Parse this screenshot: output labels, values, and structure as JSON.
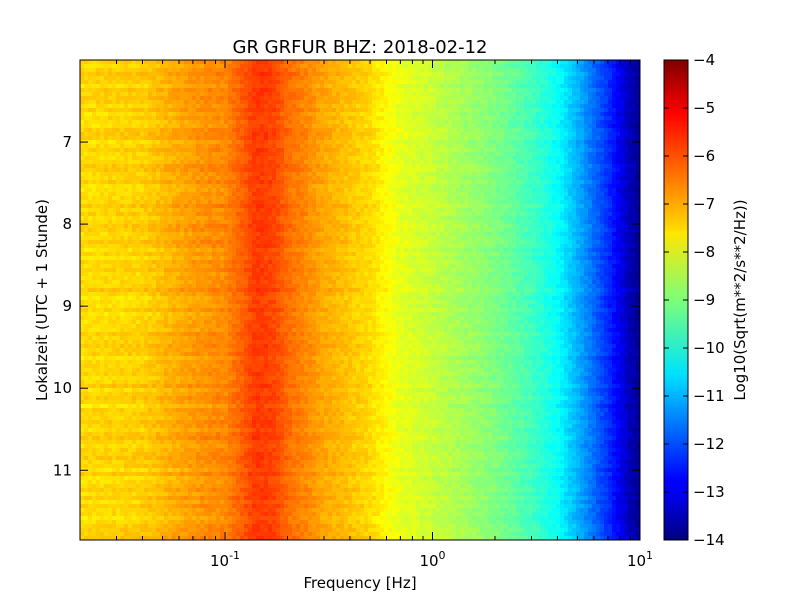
{
  "chart_data": {
    "type": "heatmap",
    "title": "GR GRFUR BHZ: 2018-02-12",
    "xlabel": "Frequency [Hz]",
    "ylabel": "Lokalzeit (UTC + 1 Stunde)",
    "colorbar_label": "Log10(Sqrt(m**2/s**2/Hz))",
    "x_scale": "log",
    "xlim": [
      0.02,
      10
    ],
    "x_ticks": [
      {
        "value": 0.1,
        "base": "10",
        "exp": "-1"
      },
      {
        "value": 1,
        "base": "10",
        "exp": "0"
      },
      {
        "value": 10,
        "base": "10",
        "exp": "1"
      }
    ],
    "ylim": [
      6.0,
      11.85
    ],
    "y_inverted": true,
    "y_ticks": [
      7,
      8,
      9,
      10,
      11
    ],
    "y_tick_labels": [
      "7",
      "8",
      "9",
      "10",
      "11"
    ],
    "clim": [
      -14,
      -4
    ],
    "colorbar_ticks": [
      -4,
      -5,
      -6,
      -7,
      -8,
      -9,
      -10,
      -11,
      -12,
      -13,
      -14
    ],
    "colorbar_tick_labels": [
      "−4",
      "−5",
      "−6",
      "−7",
      "−8",
      "−9",
      "−10",
      "−11",
      "−12",
      "−13",
      "−14"
    ],
    "colormap": "jet",
    "spectrum_profile": {
      "frequency_hz": [
        0.02,
        0.04,
        0.06,
        0.08,
        0.1,
        0.12,
        0.14,
        0.17,
        0.2,
        0.3,
        0.5,
        0.7,
        1.0,
        2.0,
        3.0,
        4.0,
        5.0,
        6.0,
        7.0,
        8.0,
        9.0,
        10.0
      ],
      "log10_psd": [
        -7.4,
        -7.3,
        -6.9,
        -6.7,
        -6.6,
        -6.2,
        -5.8,
        -5.9,
        -6.3,
        -6.9,
        -7.4,
        -8.0,
        -8.3,
        -9.0,
        -9.6,
        -10.2,
        -11.0,
        -11.7,
        -12.3,
        -12.9,
        -13.5,
        -13.8
      ]
    }
  }
}
